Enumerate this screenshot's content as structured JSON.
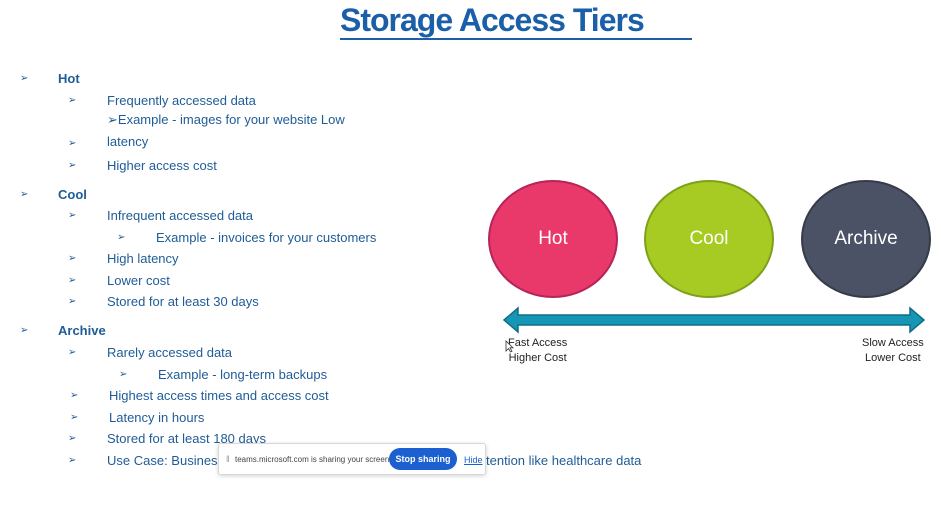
{
  "slide": {
    "title": "Storage Access Tiers",
    "bullet_glyph": "➢",
    "tiers": {
      "hot": {
        "heading": "Hot",
        "items": [
          "Frequently accessed data",
          "➢Example - images for your website Low",
          "latency",
          "Higher access cost"
        ]
      },
      "cool": {
        "heading": "Cool",
        "items": [
          "Infrequent accessed data",
          "Example - invoices for your customers",
          "High latency",
          "Lower cost",
          "Stored for at least 30 days"
        ]
      },
      "archive": {
        "heading": "Archive",
        "items": [
          "Rarely accessed data",
          "Example - long-term backups",
          "Highest access times and access cost",
          "Latency in hours",
          "Stored for at least 180 days",
          "Use Case: Business",
          "tention like healthcare data"
        ]
      }
    },
    "diagram": {
      "circles": [
        {
          "label": "Hot",
          "color": "#e8396a"
        },
        {
          "label": "Cool",
          "color": "#a8cb23"
        },
        {
          "label": "Archive",
          "color": "#4b5266"
        }
      ],
      "arrow_color": "#1596b4",
      "left_caption": {
        "line1": "Fast Access",
        "line2": "Higher Cost"
      },
      "right_caption": {
        "line1": "Slow Access",
        "line2": "Lower Cost"
      }
    }
  },
  "share_bar": {
    "message": "teams.microsoft.com is sharing your screen.",
    "stop_label": "Stop sharing",
    "hide_label": "Hide"
  }
}
